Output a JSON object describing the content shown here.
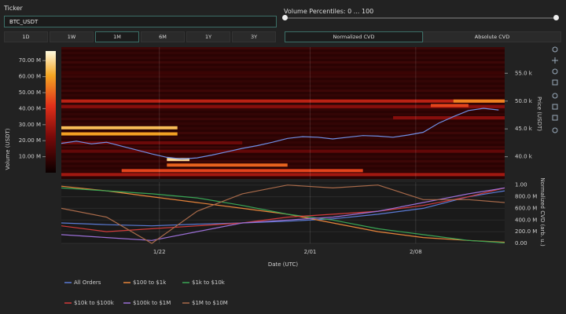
{
  "controls": {
    "ticker_label": "Ticker",
    "ticker_value": "BTC_USDT",
    "slider_label": "Volume Percentiles: 0 ... 100",
    "timeframes": [
      "1D",
      "1W",
      "1M",
      "6M",
      "1Y",
      "3Y"
    ],
    "selected_timeframe": "1M",
    "modes": [
      "Normalized CVD",
      "Absolute CVD"
    ],
    "selected_mode": "Normalized CVD"
  },
  "chart_data": [
    {
      "type": "heatmap",
      "y_label": "Price (USDT)",
      "xlim": [
        0,
        29.4
      ],
      "xticks": [
        {
          "value": 6.5,
          "label": "1/22"
        },
        {
          "value": 16.5,
          "label": "2/01"
        },
        {
          "value": 23.5,
          "label": "2/08"
        }
      ],
      "ylim": [
        36000,
        59700
      ],
      "yticks": [
        {
          "value": 40000,
          "label": "40.0 k"
        },
        {
          "value": 45000,
          "label": "45.0 k"
        },
        {
          "value": 50000,
          "label": "50.0 k"
        },
        {
          "value": 55000,
          "label": "55.0 k"
        }
      ],
      "colorbar": {
        "label": "Volume (USDT)",
        "lim": [
          0,
          76000000
        ],
        "ticks": [
          {
            "value": 10000000,
            "label": "10.00 M"
          },
          {
            "value": 20000000,
            "label": "20.00 M"
          },
          {
            "value": 30000000,
            "label": "30.00 M"
          },
          {
            "value": 40000000,
            "label": "40.00 M"
          },
          {
            "value": 50000000,
            "label": "50.00 M"
          },
          {
            "value": 60000000,
            "label": "60.00 M"
          },
          {
            "value": 70000000,
            "label": "70.00 M"
          }
        ]
      },
      "bands": [
        {
          "price": 55000,
          "start": 0,
          "end": 29.4,
          "volume": 10000000
        },
        {
          "price": 50000,
          "start": 0,
          "end": 29.4,
          "volume": 35000000
        },
        {
          "price": 49000,
          "start": 0,
          "end": 29.4,
          "volume": 25000000
        },
        {
          "price": 47000,
          "start": 22,
          "end": 29.4,
          "volume": 25000000
        },
        {
          "price": 45200,
          "start": 0,
          "end": 7.7,
          "volume": 65000000
        },
        {
          "price": 44100,
          "start": 0,
          "end": 7.7,
          "volume": 60000000
        },
        {
          "price": 50000,
          "start": 26,
          "end": 29.4,
          "volume": 55000000
        },
        {
          "price": 49200,
          "start": 24.5,
          "end": 27,
          "volume": 45000000
        },
        {
          "price": 42500,
          "start": 0,
          "end": 12,
          "volume": 20000000
        },
        {
          "price": 41000,
          "start": 0,
          "end": 29.4,
          "volume": 18000000
        },
        {
          "price": 39500,
          "start": 7,
          "end": 8.5,
          "volume": 70000000
        },
        {
          "price": 38500,
          "start": 7,
          "end": 15,
          "volume": 50000000
        },
        {
          "price": 37500,
          "start": 4,
          "end": 20,
          "volume": 45000000
        },
        {
          "price": 36800,
          "start": 0,
          "end": 29.4,
          "volume": 30000000
        }
      ],
      "series": [
        {
          "color": "#6f8fe6",
          "x": [
            0,
            1,
            2,
            3,
            4,
            5,
            6,
            7,
            8,
            9,
            10,
            11,
            12,
            13,
            14,
            15,
            16,
            17,
            18,
            19,
            20,
            21,
            22,
            23,
            24,
            25,
            26,
            27,
            28,
            29
          ],
          "values": [
            42400,
            42800,
            42300,
            42600,
            41900,
            41200,
            40500,
            39900,
            39600,
            39800,
            40300,
            40900,
            41500,
            42000,
            42600,
            43300,
            43600,
            43500,
            43200,
            43500,
            43800,
            43700,
            43500,
            43900,
            44400,
            46000,
            47200,
            48300,
            48700,
            48400
          ]
        }
      ]
    },
    {
      "type": "line",
      "x_label": "Date (UTC)",
      "y_label": "Normalized CVD (arb. u.)",
      "xlim": [
        0,
        29.4
      ],
      "xticks": [
        {
          "value": 6.5,
          "label": "1/22"
        },
        {
          "value": 16.5,
          "label": "2/01"
        },
        {
          "value": 23.5,
          "label": "2/08"
        }
      ],
      "ylim": [
        0,
        1.05
      ],
      "yticks": [
        {
          "value": 0,
          "label": "0.00"
        },
        {
          "value": 0.2,
          "label": "200.0 M"
        },
        {
          "value": 0.4,
          "label": "400.0 M"
        },
        {
          "value": 0.6,
          "label": "600.0 M"
        },
        {
          "value": 0.8,
          "label": "800.0 M"
        },
        {
          "value": 1,
          "label": "1.00"
        }
      ],
      "x": [
        0,
        3,
        6,
        9,
        12,
        15,
        18,
        21,
        24,
        27,
        29.4
      ],
      "series": [
        {
          "name": "All Orders",
          "color": "#5b7bd5",
          "values": [
            0.35,
            0.32,
            0.3,
            0.33,
            0.35,
            0.38,
            0.42,
            0.5,
            0.6,
            0.8,
            0.9
          ]
        },
        {
          "name": "$100 to $1k",
          "color": "#e8843a",
          "values": [
            0.98,
            0.9,
            0.8,
            0.7,
            0.6,
            0.5,
            0.35,
            0.2,
            0.1,
            0.05,
            0.02
          ]
        },
        {
          "name": "$1k to $10k",
          "color": "#3aa655",
          "values": [
            0.95,
            0.9,
            0.85,
            0.78,
            0.65,
            0.5,
            0.4,
            0.25,
            0.15,
            0.05,
            0.01
          ]
        },
        {
          "name": "$10k to $100k",
          "color": "#d23b3b",
          "values": [
            0.3,
            0.2,
            0.25,
            0.3,
            0.35,
            0.45,
            0.5,
            0.55,
            0.65,
            0.8,
            0.95
          ]
        },
        {
          "name": "$100k to $1M",
          "color": "#9b6fd6",
          "values": [
            0.15,
            0.1,
            0.05,
            0.2,
            0.35,
            0.4,
            0.45,
            0.55,
            0.7,
            0.85,
            0.95
          ]
        },
        {
          "name": "$1M to $10M",
          "color": "#a86a4a",
          "values": [
            0.6,
            0.45,
            0.0,
            0.55,
            0.85,
            1.0,
            0.95,
            1.0,
            0.75,
            0.75,
            0.7
          ]
        }
      ]
    }
  ]
}
